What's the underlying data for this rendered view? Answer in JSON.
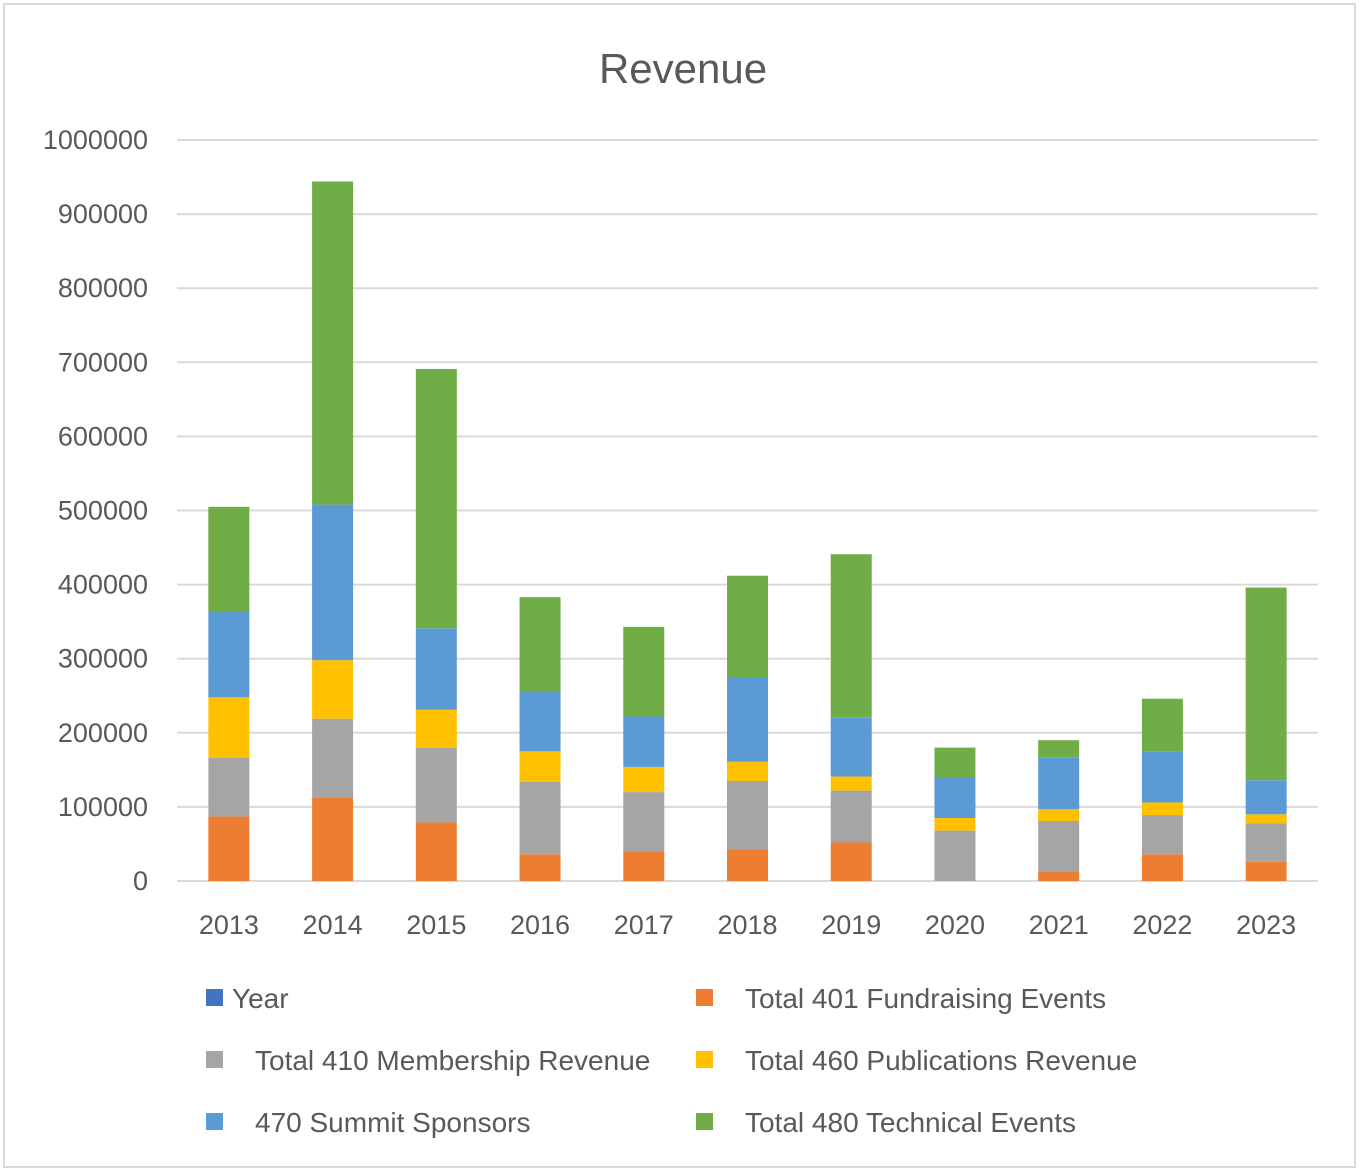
{
  "chart_data": {
    "type": "bar",
    "stacked": true,
    "title": "Revenue",
    "xlabel": "",
    "ylabel": "",
    "ylim": [
      0,
      1000000
    ],
    "yticks": [
      0,
      100000,
      200000,
      300000,
      400000,
      500000,
      600000,
      700000,
      800000,
      900000,
      1000000
    ],
    "categories": [
      "2013",
      "2014",
      "2015",
      "2016",
      "2017",
      "2018",
      "2019",
      "2020",
      "2021",
      "2022",
      "2023"
    ],
    "grid": true,
    "legend_position": "bottom",
    "series": [
      {
        "name": "Year",
        "color": "#4472c4",
        "values": [
          0,
          0,
          0,
          0,
          0,
          0,
          0,
          0,
          0,
          0,
          0
        ]
      },
      {
        "name": "Total 401 Fundraising Events",
        "color": "#ed7d31",
        "values": [
          87000,
          113000,
          79000,
          36000,
          40000,
          43000,
          52000,
          0,
          13000,
          36000,
          26000
        ]
      },
      {
        "name": "Total 410 Membership Revenue",
        "color": "#a5a5a5",
        "values": [
          79000,
          106000,
          101000,
          98000,
          80000,
          92000,
          70000,
          68000,
          68000,
          53000,
          52000
        ]
      },
      {
        "name": "Total 460 Publications Revenue",
        "color": "#ffc000",
        "values": [
          82000,
          79000,
          51000,
          41000,
          34000,
          26000,
          19000,
          17000,
          16000,
          17000,
          12000
        ]
      },
      {
        "name": "470 Summit Sponsors",
        "color": "#5b9bd5",
        "values": [
          115000,
          210000,
          110000,
          80000,
          68000,
          113000,
          80000,
          54000,
          70000,
          69000,
          46000
        ]
      },
      {
        "name": "Total 480 Technical Events",
        "color": "#70ad47",
        "values": [
          142000,
          436000,
          350000,
          128000,
          121000,
          138000,
          220000,
          41000,
          23000,
          71000,
          260000
        ]
      }
    ]
  }
}
